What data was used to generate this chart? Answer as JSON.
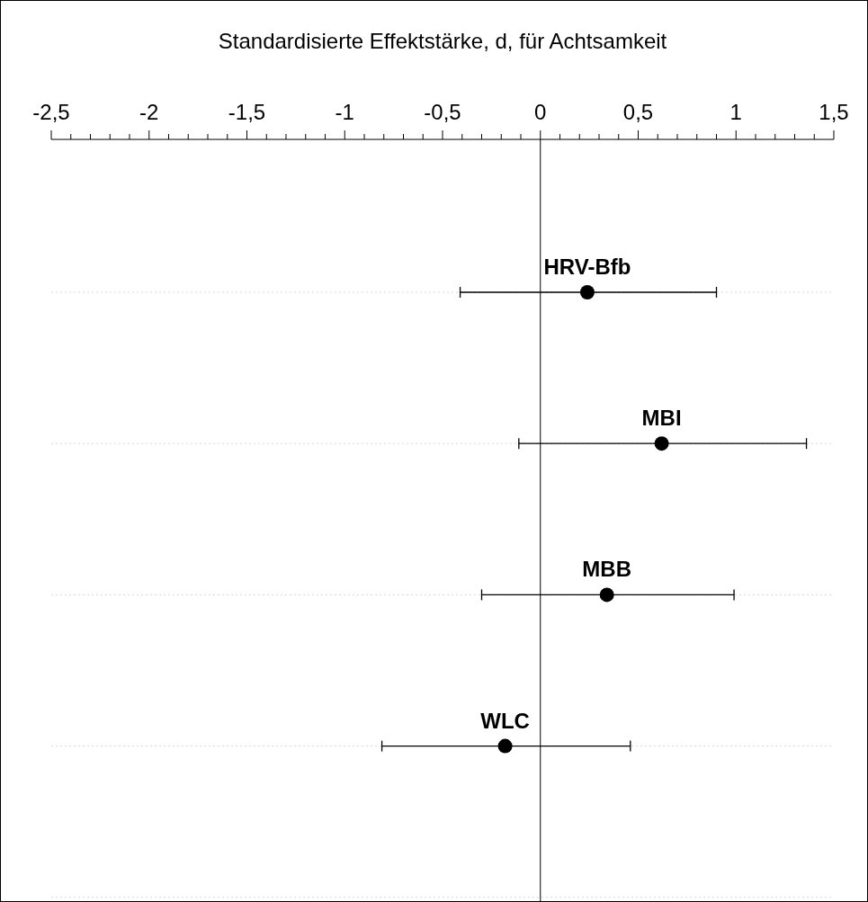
{
  "chart_data": {
    "type": "scatter",
    "orientation": "horizontal",
    "xlabel": "Standardisierte Effektstärke, d, für Achtsamkeit",
    "categories": [
      "HRV-Bfb",
      "MBI",
      "MBB",
      "WLC",
      null
    ],
    "values": [
      0.24,
      0.62,
      0.34,
      -0.18,
      null
    ],
    "errors": [
      [
        -0.41,
        0.9
      ],
      [
        -0.11,
        1.36
      ],
      [
        -0.3,
        0.99
      ],
      [
        -0.81,
        0.46
      ],
      null
    ],
    "color": "#000000",
    "marker": "circle",
    "grid": "y",
    "xlim": [
      -2.5,
      1.5
    ],
    "xticks": [
      {
        "value": -2.5,
        "label": "-2,5"
      },
      {
        "value": -2.4,
        "label": null
      },
      {
        "value": -2.3,
        "label": null
      },
      {
        "value": -2.2,
        "label": null
      },
      {
        "value": -2.1,
        "label": null
      },
      {
        "value": -2,
        "label": "-2"
      },
      {
        "value": -1.9,
        "label": null
      },
      {
        "value": -1.8,
        "label": null
      },
      {
        "value": -1.7,
        "label": null
      },
      {
        "value": -1.6,
        "label": null
      },
      {
        "value": -1.5,
        "label": "-1,5"
      },
      {
        "value": -1.4,
        "label": null
      },
      {
        "value": -1.3,
        "label": null
      },
      {
        "value": -1.2,
        "label": null
      },
      {
        "value": -1.1,
        "label": null
      },
      {
        "value": -1,
        "label": "-1"
      },
      {
        "value": -0.9,
        "label": null
      },
      {
        "value": -0.8,
        "label": null
      },
      {
        "value": -0.7,
        "label": null
      },
      {
        "value": -0.6,
        "label": null
      },
      {
        "value": -0.5,
        "label": "-0,5"
      },
      {
        "value": -0.4,
        "label": null
      },
      {
        "value": -0.3,
        "label": null
      },
      {
        "value": -0.2,
        "label": null
      },
      {
        "value": -0.1,
        "label": null
      },
      {
        "value": 0,
        "label": "0"
      },
      {
        "value": 0.1,
        "label": null
      },
      {
        "value": 0.2,
        "label": null
      },
      {
        "value": 0.3,
        "label": null
      },
      {
        "value": 0.4,
        "label": null
      },
      {
        "value": 0.5,
        "label": "0,5"
      },
      {
        "value": 0.6,
        "label": null
      },
      {
        "value": 0.7,
        "label": null
      },
      {
        "value": 0.8,
        "label": null
      },
      {
        "value": 0.9,
        "label": null
      },
      {
        "value": 1,
        "label": "1"
      },
      {
        "value": 1.1,
        "label": null
      },
      {
        "value": 1.2,
        "label": null
      },
      {
        "value": 1.3,
        "label": null
      },
      {
        "value": 1.4,
        "label": null
      },
      {
        "value": 1.5,
        "label": "1,5"
      }
    ]
  }
}
